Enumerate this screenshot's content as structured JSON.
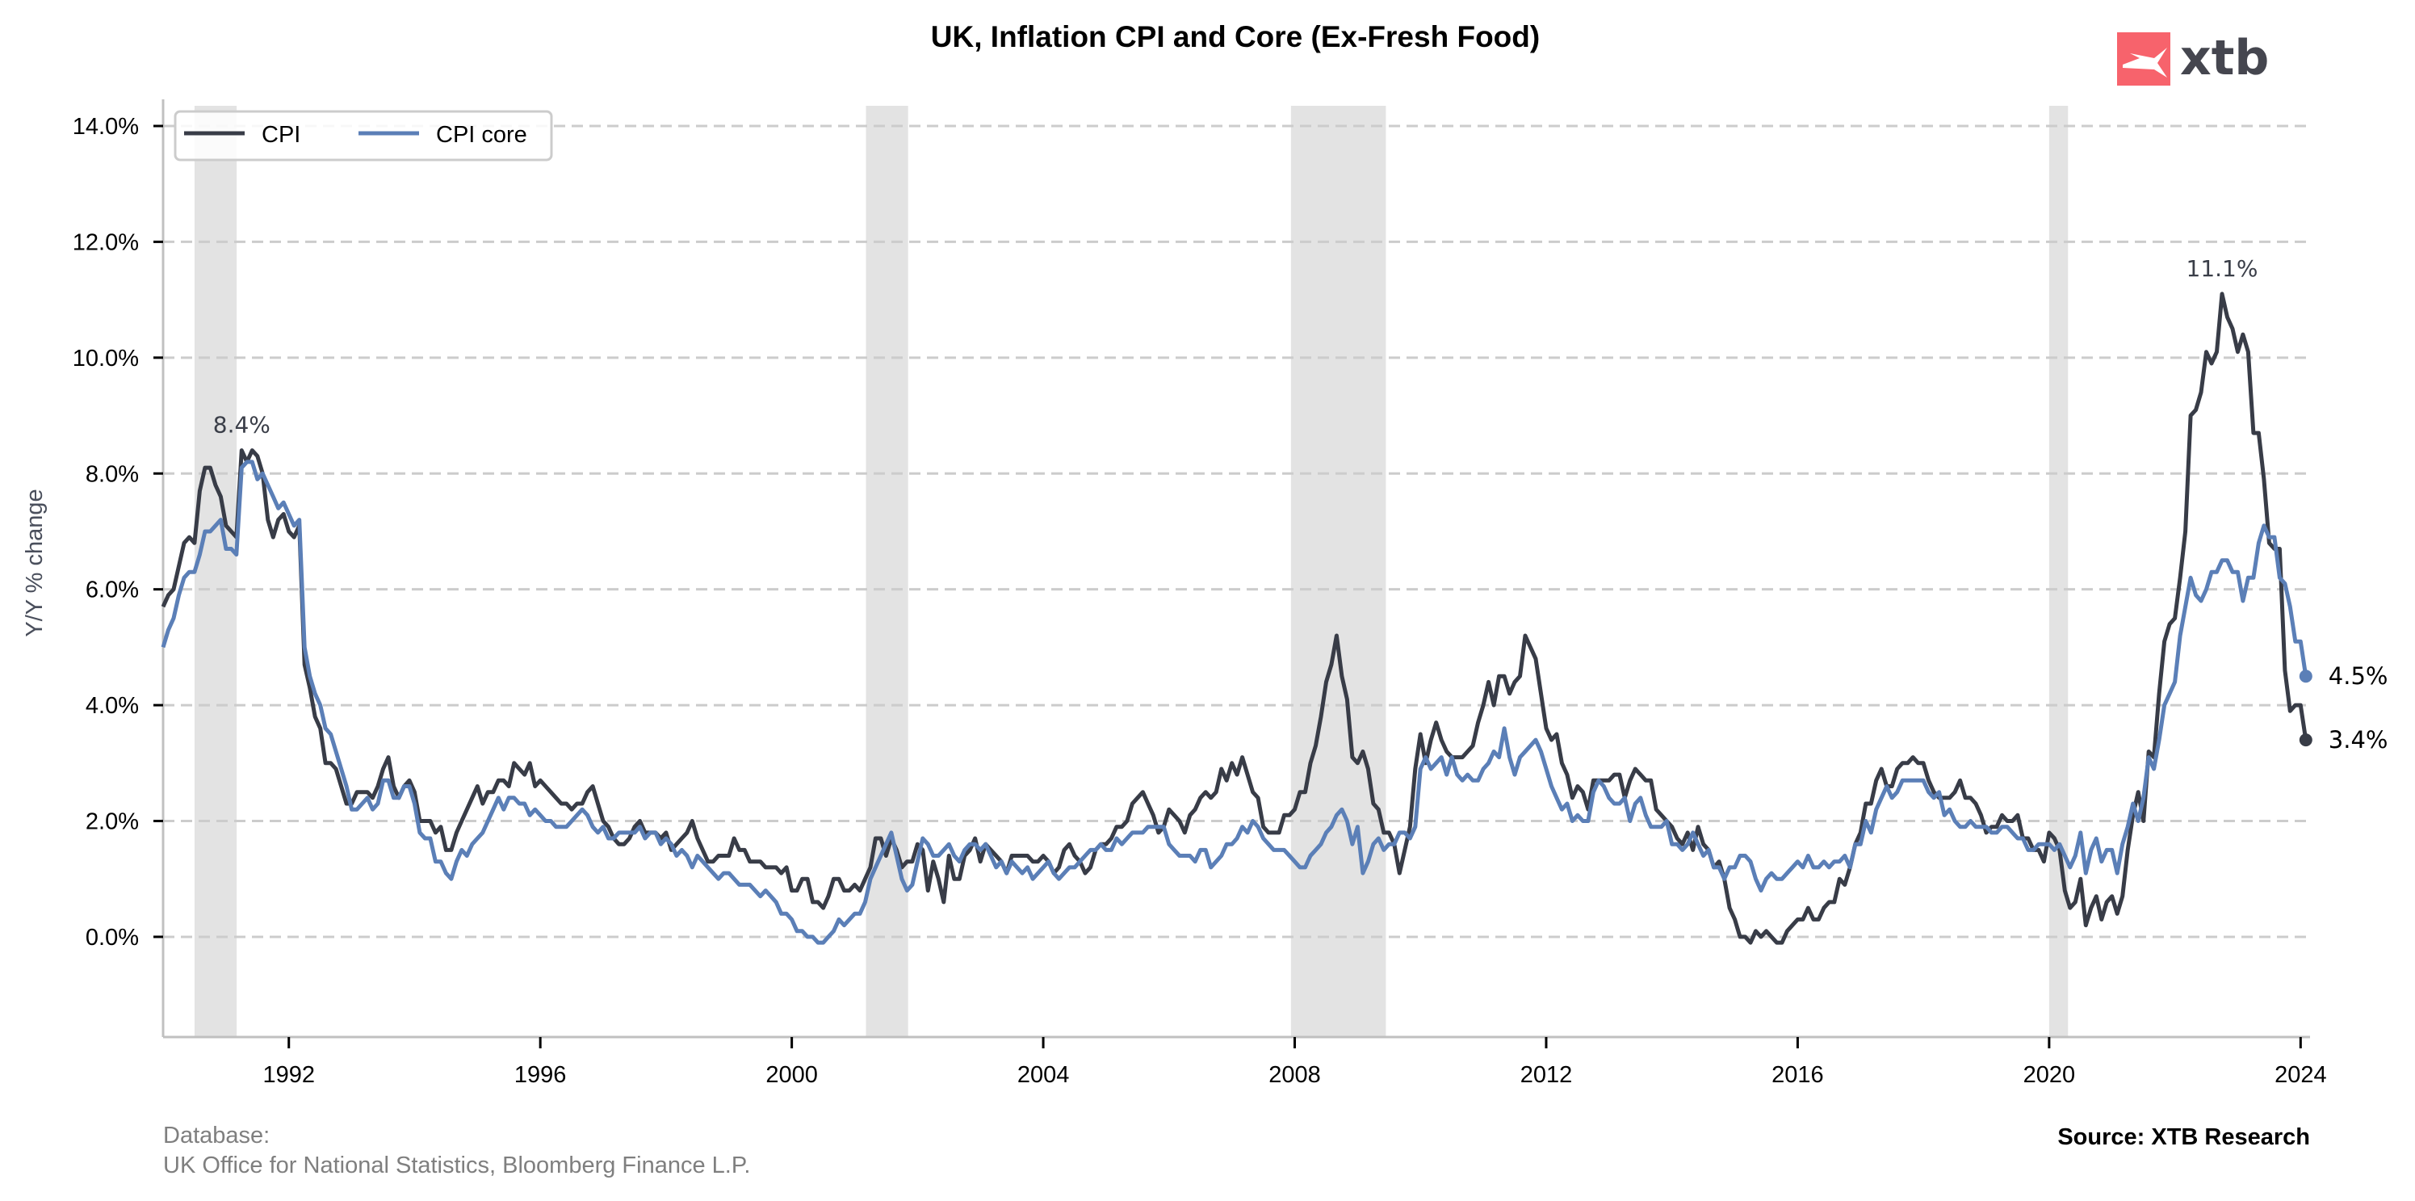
{
  "colors": {
    "cpi": "#383c47",
    "cpi_core": "#5b7fb7",
    "recession": "#e3e3e3",
    "grid": "#cccccc",
    "axis": "#c0c0c0",
    "logo_red": "#f7636c",
    "logo_text": "#45464f"
  },
  "logo": {
    "text": "xtb",
    "icon": "xtb-logo-icon"
  },
  "footer": {
    "database_label": "Database:",
    "database_sources": "UK Office for National Statistics, Bloomberg Finance L.P.",
    "source": "Source: XTB Research"
  },
  "chart_data": {
    "type": "line",
    "title": "UK, Inflation CPI and Core (Ex-Fresh Food)",
    "xlabel": "",
    "ylabel": "Y/Y % change",
    "xlim": [
      1990.0,
      2024.15
    ],
    "ylim": [
      -1.73,
      14.46
    ],
    "grid": true,
    "legend_position": "top-left",
    "x_ticks": [
      1992,
      1996,
      2000,
      2004,
      2008,
      2012,
      2016,
      2020,
      2024
    ],
    "x_tick_labels": [
      "1992",
      "1996",
      "2000",
      "2004",
      "2008",
      "2012",
      "2016",
      "2020",
      "2024"
    ],
    "y_ticks": [
      0,
      2,
      4,
      6,
      8,
      10,
      12,
      14
    ],
    "y_tick_labels": [
      "0.0%",
      "2.0%",
      "4.0%",
      "6.0%",
      "8.0%",
      "10.0%",
      "12.0%",
      "14.0%"
    ],
    "x_start": "1990-01",
    "frequency": "monthly",
    "recessions": [
      [
        1990.5,
        1991.17
      ],
      [
        2001.18,
        2001.85
      ],
      [
        2007.94,
        2009.45
      ],
      [
        2020.0,
        2020.3
      ]
    ],
    "annotations": [
      {
        "label": "8.4%",
        "x": 1991.25,
        "y": 8.4,
        "series": "CPI"
      },
      {
        "label": "11.1%",
        "x": 2022.75,
        "y": 11.1,
        "series": "CPI"
      }
    ],
    "end_labels": [
      {
        "label": "4.5%",
        "value": 4.5,
        "series": "CPI core"
      },
      {
        "label": "3.4%",
        "value": 3.4,
        "series": "CPI"
      }
    ],
    "series": [
      {
        "name": "CPI",
        "values": [
          5.7,
          5.9,
          6.0,
          6.4,
          6.8,
          6.9,
          6.8,
          7.7,
          8.1,
          8.1,
          7.8,
          7.6,
          7.1,
          7.0,
          6.9,
          8.4,
          8.2,
          8.4,
          8.3,
          8.0,
          7.2,
          6.9,
          7.2,
          7.3,
          7.0,
          6.9,
          7.1,
          4.7,
          4.3,
          3.8,
          3.6,
          3.0,
          3.0,
          2.9,
          2.6,
          2.3,
          2.3,
          2.5,
          2.5,
          2.5,
          2.4,
          2.6,
          2.9,
          3.1,
          2.6,
          2.4,
          2.6,
          2.7,
          2.5,
          2.0,
          2.0,
          2.0,
          1.8,
          1.9,
          1.5,
          1.5,
          1.8,
          2.0,
          2.2,
          2.4,
          2.6,
          2.3,
          2.5,
          2.5,
          2.7,
          2.7,
          2.6,
          3.0,
          2.9,
          2.8,
          3.0,
          2.6,
          2.7,
          2.6,
          2.5,
          2.4,
          2.3,
          2.3,
          2.2,
          2.3,
          2.3,
          2.5,
          2.6,
          2.3,
          2.0,
          1.9,
          1.7,
          1.6,
          1.6,
          1.7,
          1.9,
          2.0,
          1.8,
          1.8,
          1.8,
          1.7,
          1.8,
          1.5,
          1.6,
          1.7,
          1.8,
          2.0,
          1.7,
          1.5,
          1.3,
          1.3,
          1.4,
          1.4,
          1.4,
          1.7,
          1.5,
          1.5,
          1.3,
          1.3,
          1.3,
          1.2,
          1.2,
          1.2,
          1.1,
          1.2,
          0.8,
          0.8,
          1.0,
          1.0,
          0.6,
          0.6,
          0.5,
          0.7,
          1.0,
          1.0,
          0.8,
          0.8,
          0.9,
          0.8,
          1.0,
          1.2,
          1.7,
          1.7,
          1.4,
          1.7,
          1.5,
          1.2,
          1.3,
          1.3,
          1.6,
          1.5,
          0.8,
          1.3,
          1.0,
          0.6,
          1.4,
          1.0,
          1.0,
          1.4,
          1.5,
          1.7,
          1.3,
          1.6,
          1.5,
          1.4,
          1.3,
          1.1,
          1.4,
          1.4,
          1.4,
          1.4,
          1.3,
          1.3,
          1.4,
          1.3,
          1.1,
          1.2,
          1.5,
          1.6,
          1.4,
          1.3,
          1.1,
          1.2,
          1.5,
          1.6,
          1.6,
          1.7,
          1.9,
          1.9,
          2.0,
          2.3,
          2.4,
          2.5,
          2.3,
          2.1,
          1.8,
          1.9,
          2.2,
          2.1,
          2.0,
          1.8,
          2.1,
          2.2,
          2.4,
          2.5,
          2.4,
          2.5,
          2.9,
          2.7,
          3.0,
          2.8,
          3.1,
          2.8,
          2.5,
          2.4,
          1.9,
          1.8,
          1.8,
          1.8,
          2.1,
          2.1,
          2.2,
          2.5,
          2.5,
          3.0,
          3.3,
          3.8,
          4.4,
          4.7,
          5.2,
          4.5,
          4.1,
          3.1,
          3.0,
          3.2,
          2.9,
          2.3,
          2.2,
          1.8,
          1.8,
          1.6,
          1.1,
          1.5,
          1.9,
          2.9,
          3.5,
          3.0,
          3.4,
          3.7,
          3.4,
          3.2,
          3.1,
          3.1,
          3.1,
          3.2,
          3.3,
          3.7,
          4.0,
          4.4,
          4.0,
          4.5,
          4.5,
          4.2,
          4.4,
          4.5,
          5.2,
          5.0,
          4.8,
          4.2,
          3.6,
          3.4,
          3.5,
          3.0,
          2.8,
          2.4,
          2.6,
          2.5,
          2.2,
          2.7,
          2.7,
          2.7,
          2.7,
          2.8,
          2.8,
          2.4,
          2.7,
          2.9,
          2.8,
          2.7,
          2.7,
          2.2,
          2.1,
          2.0,
          1.9,
          1.7,
          1.6,
          1.8,
          1.5,
          1.9,
          1.6,
          1.5,
          1.2,
          1.3,
          1.0,
          0.5,
          0.3,
          0.0,
          0.0,
          -0.1,
          0.1,
          0.0,
          0.1,
          0.0,
          -0.1,
          -0.1,
          0.1,
          0.2,
          0.3,
          0.3,
          0.5,
          0.3,
          0.3,
          0.5,
          0.6,
          0.6,
          1.0,
          0.9,
          1.2,
          1.6,
          1.8,
          2.3,
          2.3,
          2.7,
          2.9,
          2.6,
          2.6,
          2.9,
          3.0,
          3.0,
          3.1,
          3.0,
          3.0,
          2.7,
          2.5,
          2.4,
          2.4,
          2.4,
          2.5,
          2.7,
          2.4,
          2.4,
          2.3,
          2.1,
          1.8,
          1.9,
          1.9,
          2.1,
          2.0,
          2.0,
          2.1,
          1.7,
          1.7,
          1.5,
          1.5,
          1.3,
          1.8,
          1.7,
          1.5,
          0.8,
          0.5,
          0.6,
          1.0,
          0.2,
          0.5,
          0.7,
          0.3,
          0.6,
          0.7,
          0.4,
          0.7,
          1.5,
          2.1,
          2.5,
          2.0,
          3.2,
          3.1,
          4.2,
          5.1,
          5.4,
          5.5,
          6.2,
          7.0,
          9.0,
          9.1,
          9.4,
          10.1,
          9.9,
          10.1,
          11.1,
          10.7,
          10.5,
          10.1,
          10.4,
          10.1,
          8.7,
          8.7,
          7.9,
          6.8,
          6.7,
          6.7,
          4.6,
          3.9,
          4.0,
          4.0,
          3.4
        ]
      },
      {
        "name": "CPI core",
        "values": [
          5.0,
          5.3,
          5.5,
          5.9,
          6.2,
          6.3,
          6.3,
          6.6,
          7.0,
          7.0,
          7.1,
          7.2,
          6.7,
          6.7,
          6.6,
          8.1,
          8.2,
          8.2,
          7.9,
          8.0,
          7.8,
          7.6,
          7.4,
          7.5,
          7.3,
          7.1,
          7.2,
          5.0,
          4.5,
          4.2,
          4.0,
          3.6,
          3.5,
          3.2,
          2.9,
          2.6,
          2.2,
          2.2,
          2.3,
          2.4,
          2.2,
          2.3,
          2.7,
          2.7,
          2.4,
          2.4,
          2.6,
          2.6,
          2.3,
          1.8,
          1.7,
          1.7,
          1.3,
          1.3,
          1.1,
          1.0,
          1.3,
          1.5,
          1.4,
          1.6,
          1.7,
          1.8,
          2.0,
          2.2,
          2.4,
          2.2,
          2.4,
          2.4,
          2.3,
          2.3,
          2.1,
          2.2,
          2.1,
          2.0,
          2.0,
          1.9,
          1.9,
          1.9,
          2.0,
          2.1,
          2.2,
          2.1,
          1.9,
          1.8,
          1.9,
          1.7,
          1.7,
          1.8,
          1.8,
          1.8,
          1.8,
          1.9,
          1.7,
          1.8,
          1.8,
          1.6,
          1.7,
          1.6,
          1.4,
          1.5,
          1.4,
          1.2,
          1.4,
          1.3,
          1.2,
          1.1,
          1.0,
          1.1,
          1.1,
          1.0,
          0.9,
          0.9,
          0.9,
          0.8,
          0.7,
          0.8,
          0.7,
          0.6,
          0.4,
          0.4,
          0.3,
          0.1,
          0.1,
          0.0,
          0.0,
          -0.1,
          -0.1,
          0.0,
          0.1,
          0.3,
          0.2,
          0.3,
          0.4,
          0.4,
          0.6,
          1.0,
          1.2,
          1.4,
          1.6,
          1.8,
          1.4,
          1.0,
          0.8,
          0.9,
          1.3,
          1.7,
          1.6,
          1.4,
          1.4,
          1.5,
          1.6,
          1.4,
          1.3,
          1.5,
          1.6,
          1.6,
          1.5,
          1.6,
          1.4,
          1.2,
          1.3,
          1.1,
          1.3,
          1.2,
          1.1,
          1.2,
          1.0,
          1.1,
          1.2,
          1.3,
          1.1,
          1.0,
          1.1,
          1.2,
          1.2,
          1.3,
          1.4,
          1.5,
          1.5,
          1.6,
          1.5,
          1.5,
          1.7,
          1.6,
          1.7,
          1.8,
          1.8,
          1.8,
          1.9,
          1.9,
          1.9,
          1.9,
          1.6,
          1.5,
          1.4,
          1.4,
          1.4,
          1.3,
          1.5,
          1.5,
          1.2,
          1.3,
          1.4,
          1.6,
          1.6,
          1.7,
          1.9,
          1.8,
          2.0,
          1.9,
          1.7,
          1.6,
          1.5,
          1.5,
          1.5,
          1.4,
          1.3,
          1.2,
          1.2,
          1.4,
          1.5,
          1.6,
          1.8,
          1.9,
          2.1,
          2.2,
          2.0,
          1.6,
          1.9,
          1.1,
          1.3,
          1.6,
          1.7,
          1.5,
          1.6,
          1.6,
          1.8,
          1.8,
          1.7,
          1.9,
          2.9,
          3.1,
          2.9,
          3.0,
          3.1,
          2.8,
          3.1,
          2.8,
          2.7,
          2.8,
          2.7,
          2.7,
          2.9,
          3.0,
          3.2,
          3.1,
          3.6,
          3.1,
          2.8,
          3.1,
          3.2,
          3.3,
          3.4,
          3.2,
          2.9,
          2.6,
          2.4,
          2.2,
          2.3,
          2.0,
          2.1,
          2.0,
          2.0,
          2.5,
          2.7,
          2.6,
          2.4,
          2.3,
          2.3,
          2.4,
          2.0,
          2.3,
          2.4,
          2.1,
          1.9,
          1.9,
          1.9,
          2.0,
          1.6,
          1.6,
          1.5,
          1.6,
          1.8,
          1.6,
          1.4,
          1.5,
          1.2,
          1.2,
          1.0,
          1.2,
          1.2,
          1.4,
          1.4,
          1.3,
          1.0,
          0.8,
          1.0,
          1.1,
          1.0,
          1.0,
          1.1,
          1.2,
          1.3,
          1.2,
          1.4,
          1.2,
          1.2,
          1.3,
          1.2,
          1.3,
          1.3,
          1.4,
          1.2,
          1.6,
          1.6,
          2.0,
          1.8,
          2.2,
          2.4,
          2.6,
          2.4,
          2.5,
          2.7,
          2.7,
          2.7,
          2.7,
          2.7,
          2.5,
          2.4,
          2.5,
          2.1,
          2.2,
          2.0,
          1.9,
          1.9,
          2.0,
          1.9,
          1.9,
          1.9,
          1.8,
          1.8,
          1.9,
          1.9,
          1.8,
          1.7,
          1.7,
          1.5,
          1.5,
          1.6,
          1.6,
          1.6,
          1.5,
          1.6,
          1.4,
          1.2,
          1.4,
          1.8,
          1.1,
          1.5,
          1.7,
          1.3,
          1.5,
          1.5,
          1.1,
          1.6,
          1.9,
          2.3,
          2.0,
          2.4,
          3.1,
          2.9,
          3.4,
          4.0,
          4.2,
          4.4,
          5.2,
          5.7,
          6.2,
          5.9,
          5.8,
          6.0,
          6.3,
          6.3,
          6.5,
          6.5,
          6.3,
          6.3,
          5.8,
          6.2,
          6.2,
          6.8,
          7.1,
          6.9,
          6.9,
          6.2,
          6.1,
          5.7,
          5.1,
          5.1,
          4.5
        ]
      }
    ]
  }
}
